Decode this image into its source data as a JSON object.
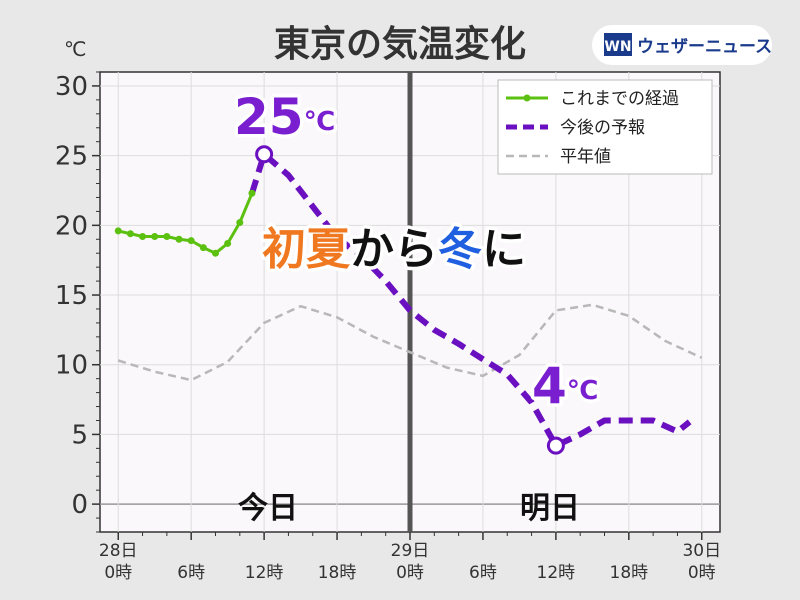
{
  "title": "東京の気温変化",
  "unit": "℃",
  "brand": {
    "logo_mark": "WN",
    "name": "ウェザーニュース"
  },
  "headline": {
    "part1": "初夏",
    "part2": "から",
    "part3": "冬",
    "part4": "に",
    "color1": "#f07820",
    "color3": "#2060e0"
  },
  "annotations": {
    "max": "25",
    "min": "4",
    "deg": "℃",
    "color": "#7a1fd0"
  },
  "days": {
    "today": "今日",
    "tomorrow": "明日"
  },
  "legend": {
    "observed": "これまでの経過",
    "forecast": "今後の予報",
    "normal": "平年値"
  },
  "chart_data": {
    "type": "line",
    "title": "東京の気温変化",
    "ylabel": "℃",
    "ylim": [
      -2,
      31
    ],
    "xlim": [
      -1.5,
      49.5
    ],
    "yticks": [
      0,
      5,
      10,
      15,
      20,
      25,
      30
    ],
    "xticks": [
      {
        "x": 0,
        "label1": "28日",
        "label2": "0時"
      },
      {
        "x": 6,
        "label1": "",
        "label2": "6時"
      },
      {
        "x": 12,
        "label1": "",
        "label2": "12時"
      },
      {
        "x": 18,
        "label1": "",
        "label2": "18時"
      },
      {
        "x": 24,
        "label1": "29日",
        "label2": "0時"
      },
      {
        "x": 30,
        "label1": "",
        "label2": "6時"
      },
      {
        "x": 36,
        "label1": "",
        "label2": "12時"
      },
      {
        "x": 42,
        "label1": "",
        "label2": "18時"
      },
      {
        "x": 48,
        "label1": "30日",
        "label2": "0時"
      }
    ],
    "day_boundary_x": 24,
    "grid": true,
    "legend_position": "top-right",
    "series": [
      {
        "name": "これまでの経過",
        "color": "#5cc010",
        "x": [
          0,
          1,
          2,
          3,
          4,
          5,
          6,
          7,
          8,
          9,
          10,
          11
        ],
        "y": [
          19.6,
          19.4,
          19.2,
          19.2,
          19.2,
          19.0,
          18.9,
          18.4,
          18.0,
          18.7,
          20.2,
          22.3
        ]
      },
      {
        "name": "今後の予報",
        "color": "#6a10c0",
        "x": [
          11,
          12,
          14,
          18,
          20,
          22,
          24,
          26,
          28,
          30,
          32,
          34,
          36,
          38,
          40,
          44,
          46,
          47
        ],
        "y": [
          22.3,
          25.1,
          23.6,
          19.1,
          17.8,
          16.0,
          13.9,
          12.5,
          11.5,
          10.4,
          9.3,
          7.3,
          4.2,
          5.0,
          6.0,
          6.0,
          5.2,
          5.9
        ]
      },
      {
        "name": "平年値",
        "color": "#b8b8b8",
        "x": [
          0,
          3,
          6,
          9,
          12,
          15,
          18,
          21,
          24,
          27,
          30,
          33,
          36,
          39,
          42,
          45,
          48
        ],
        "y": [
          10.3,
          9.5,
          8.9,
          10.2,
          13.0,
          14.2,
          13.4,
          12.0,
          10.9,
          9.8,
          9.2,
          10.7,
          13.9,
          14.3,
          13.5,
          11.7,
          10.5
        ]
      }
    ],
    "markers": [
      {
        "x": 12,
        "y": 25.1,
        "label": "25℃"
      },
      {
        "x": 36,
        "y": 4.2,
        "label": "4℃"
      }
    ]
  }
}
